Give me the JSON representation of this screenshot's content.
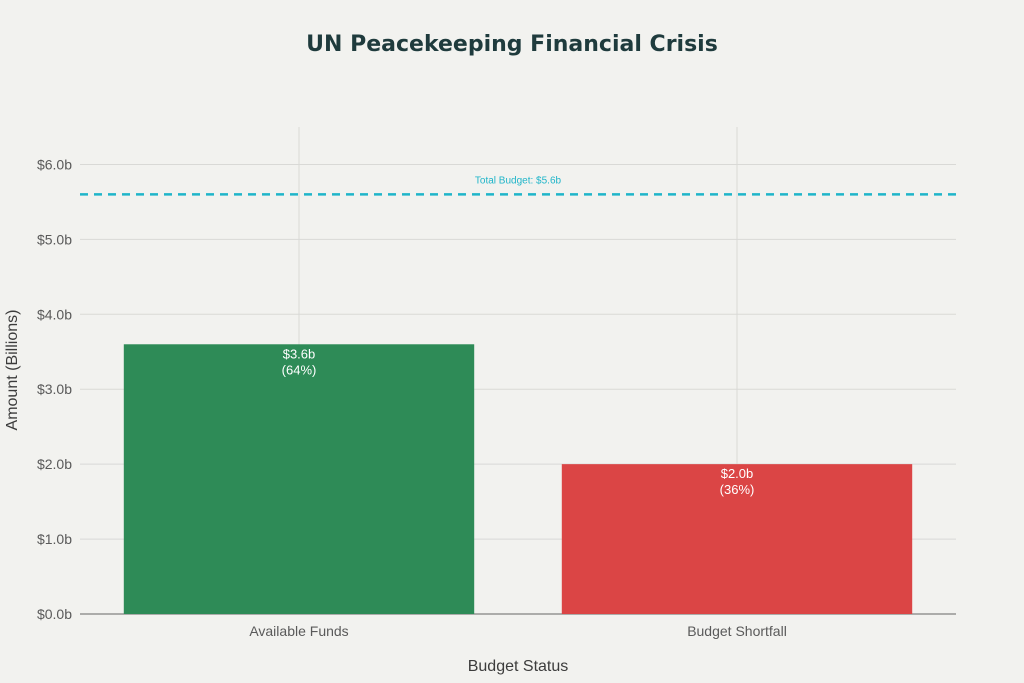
{
  "chart_data": {
    "type": "bar",
    "title": "UN Peacekeeping Financial Crisis",
    "xlabel": "Budget Status",
    "ylabel": "Amount (Billions)",
    "categories": [
      "Available Funds",
      "Budget Shortfall"
    ],
    "values": [
      3.6,
      2.0
    ],
    "data_labels": [
      [
        "$3.6b",
        "(64%)"
      ],
      [
        "$2.0b",
        "(36%)"
      ]
    ],
    "colors": [
      "#2e8b57",
      "#db4545"
    ],
    "ylim": [
      0,
      6.5
    ],
    "yticks": [
      0,
      1,
      2,
      3,
      4,
      5,
      6
    ],
    "ytick_labels": [
      "$0.0b",
      "$1.0b",
      "$2.0b",
      "$3.0b",
      "$4.0b",
      "$5.0b",
      "$6.0b"
    ],
    "reference_line": {
      "value": 5.6,
      "label": "Total Budget: $5.6b",
      "color": "#1fb5c9",
      "style": "dashed"
    },
    "grid": true,
    "legend": "none"
  }
}
